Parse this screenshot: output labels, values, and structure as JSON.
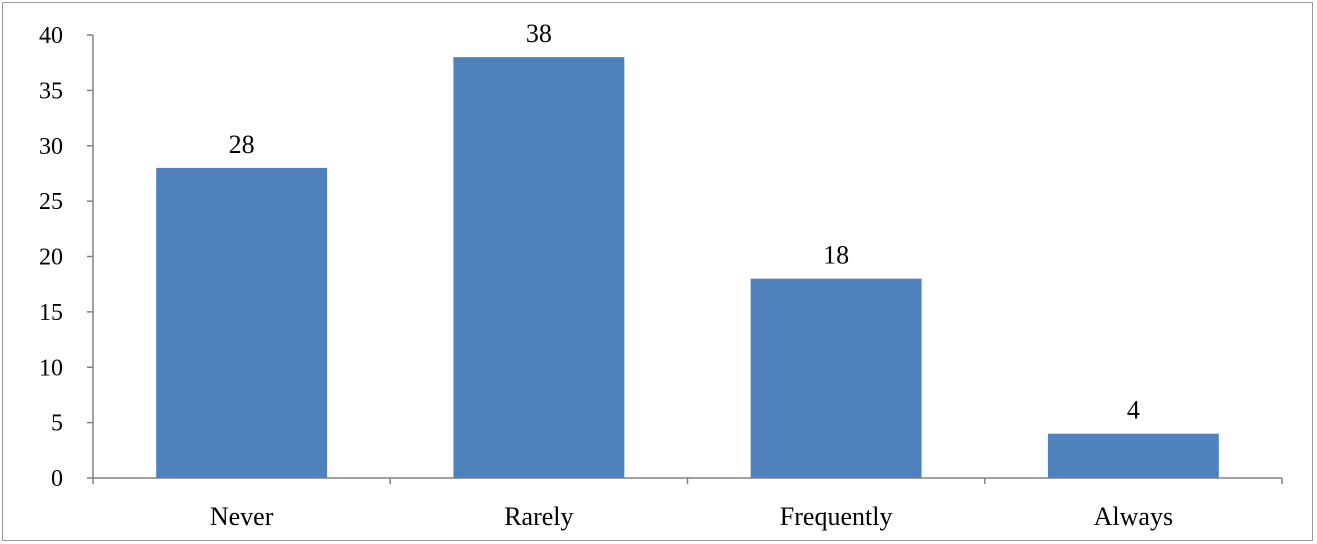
{
  "chart_data": {
    "type": "bar",
    "categories": [
      "Never",
      "Rarely",
      "Frequently",
      "Always"
    ],
    "values": [
      28,
      38,
      18,
      4
    ],
    "data_labels": [
      "28",
      "38",
      "18",
      "4"
    ],
    "ylim": [
      0,
      40
    ],
    "yticks": [
      "0",
      "5",
      "10",
      "15",
      "20",
      "25",
      "30",
      "35",
      "40"
    ],
    "title": "",
    "xlabel": "",
    "ylabel": "",
    "grid": false,
    "legend": "none",
    "bar_color": "#4f81bd"
  }
}
